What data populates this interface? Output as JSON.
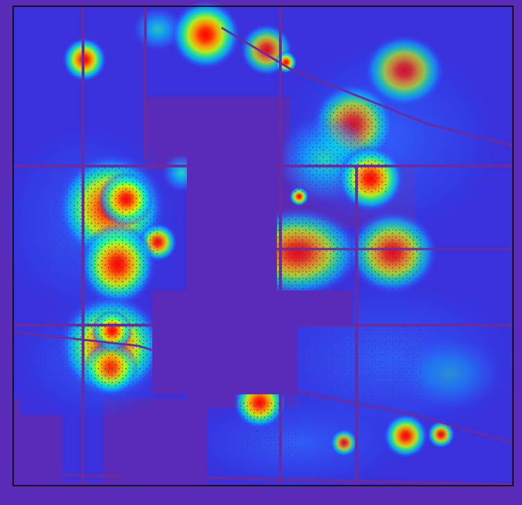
{
  "map": {
    "kind": "heatmap-overlay",
    "colors": {
      "background": "#5a2ab8",
      "block": "#3b2bd8",
      "road": "#6a2aa0",
      "border": "#111111",
      "ramp": [
        "#2850ff",
        "#00c8ff",
        "#20ff90",
        "#c8ff00",
        "#ffb000",
        "#ff4000",
        "#ff0000"
      ]
    },
    "hotspots": [
      {
        "id": "hotspot-top-left",
        "intensity": 1.0
      },
      {
        "id": "hotspot-top-center-left",
        "intensity": 0.9
      },
      {
        "id": "hotspot-top-center",
        "intensity": 1.0
      },
      {
        "id": "hotspot-top-center-right",
        "intensity": 0.8
      },
      {
        "id": "hotspot-top-right",
        "intensity": 0.7
      },
      {
        "id": "hotspot-upper-right",
        "intensity": 0.85
      },
      {
        "id": "hotspot-mid-right-cluster",
        "intensity": 1.0
      },
      {
        "id": "hotspot-left-upper",
        "intensity": 1.0
      },
      {
        "id": "hotspot-left-small",
        "intensity": 0.95
      },
      {
        "id": "hotspot-left-lower",
        "intensity": 1.0
      },
      {
        "id": "hotspot-center",
        "intensity": 0.75
      },
      {
        "id": "hotspot-center-right",
        "intensity": 0.85
      },
      {
        "id": "hotspot-lower-left",
        "intensity": 1.0
      },
      {
        "id": "hotspot-bottom-center",
        "intensity": 1.0
      },
      {
        "id": "hotspot-bottom-right-a",
        "intensity": 0.95
      },
      {
        "id": "hotspot-bottom-right-b",
        "intensity": 0.9
      },
      {
        "id": "hotspot-bottom-right-c",
        "intensity": 0.8
      },
      {
        "id": "hotspot-right-lower",
        "intensity": 0.5
      }
    ]
  }
}
